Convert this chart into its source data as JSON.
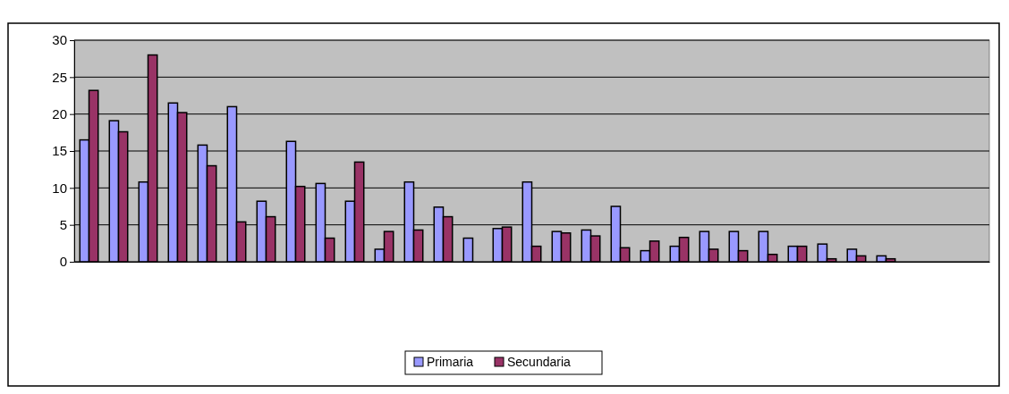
{
  "chart_data": {
    "type": "bar",
    "categories": [
      null,
      null,
      null,
      null,
      null,
      null,
      null,
      null,
      null,
      null,
      null,
      null,
      null,
      null,
      null,
      null,
      null,
      null,
      null,
      null,
      null,
      null,
      null,
      null,
      null,
      null,
      null,
      null,
      null,
      null,
      null
    ],
    "series": [
      {
        "name": "Primaria",
        "color": "#9999ff",
        "values": [
          16.5,
          19.1,
          10.8,
          21.5,
          15.8,
          21,
          8.2,
          16.3,
          10.6,
          8.2,
          1.7,
          10.8,
          7.4,
          3.2,
          4.5,
          10.8,
          4.1,
          4.3,
          7.5,
          1.5,
          2.1,
          4.1,
          4.1,
          4.1,
          2.1,
          2.4,
          1.7,
          0.8,
          null,
          null,
          null
        ]
      },
      {
        "name": "Secundaria",
        "color": "#993366",
        "values": [
          23.2,
          17.6,
          28,
          20.2,
          13,
          5.4,
          6.1,
          10.2,
          3.2,
          13.5,
          4.1,
          4.3,
          6.1,
          null,
          4.7,
          2.1,
          3.9,
          3.5,
          1.9,
          2.8,
          3.3,
          1.7,
          1.5,
          1,
          2.1,
          0.4,
          0.8,
          0.4,
          null,
          null,
          null
        ]
      }
    ],
    "ylim": [
      0,
      30
    ],
    "yticks": [
      0,
      5,
      10,
      15,
      20,
      25,
      30
    ],
    "grid": "y",
    "legend": "bottom"
  }
}
